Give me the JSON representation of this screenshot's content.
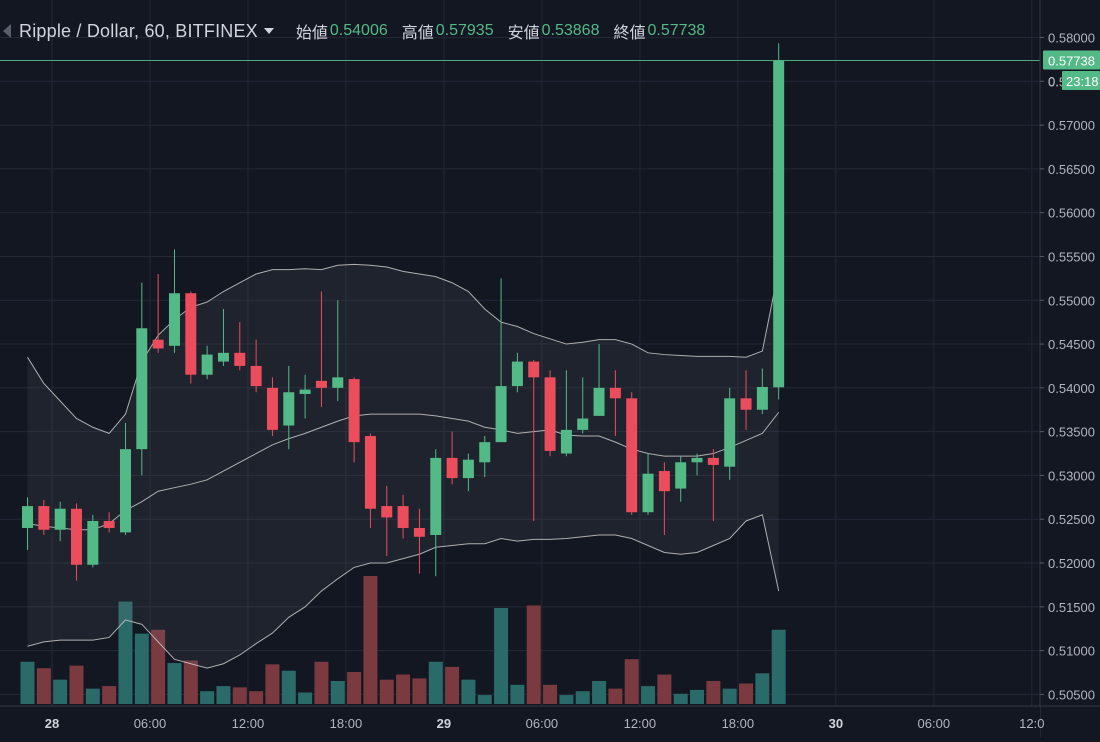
{
  "header": {
    "symbol": "Ripple / Dollar, 60, BITFINEX",
    "open_label": "始値",
    "open_value": "0.54006",
    "high_label": "高値",
    "high_value": "0.57935",
    "low_label": "安値",
    "low_value": "0.53868",
    "close_label": "終値",
    "close_value": "0.57738"
  },
  "price_axis": {
    "last_price_label": "0.57738",
    "countdown_label": "23:18",
    "countdown_prefix": "0."
  },
  "colors": {
    "up": "#53b987",
    "down": "#eb4d5c",
    "vol_up": "#2a6a68",
    "vol_down": "#7a3a40",
    "background": "#131722",
    "grid": "#232836",
    "band_line": "#c8c8c8"
  },
  "chart_data": {
    "type": "candlestick",
    "title": "Ripple / Dollar, 60, BITFINEX",
    "interval": "60",
    "exchange": "BITFINEX",
    "ylim": [
      0.503,
      0.5825
    ],
    "y_ticks": [
      "0.58000",
      "0.57500",
      "0.57000",
      "0.56500",
      "0.56000",
      "0.55500",
      "0.55000",
      "0.54500",
      "0.54000",
      "0.53500",
      "0.53000",
      "0.52500",
      "0.52000",
      "0.51500",
      "0.51000",
      "0.50500"
    ],
    "x_ticks": [
      {
        "label": "28",
        "hour": 0,
        "bold": true
      },
      {
        "label": "06:00",
        "hour": 6
      },
      {
        "label": "12:00",
        "hour": 12
      },
      {
        "label": "18:00",
        "hour": 18
      },
      {
        "label": "29",
        "hour": 24,
        "bold": true
      },
      {
        "label": "06:00",
        "hour": 30
      },
      {
        "label": "12:00",
        "hour": 36
      },
      {
        "label": "18:00",
        "hour": 42
      },
      {
        "label": "30",
        "hour": 48,
        "bold": true
      },
      {
        "label": "06:00",
        "hour": 54
      },
      {
        "label": "12:0",
        "hour": 60
      }
    ],
    "candles": [
      {
        "t": -2,
        "o": 0.524,
        "h": 0.5275,
        "l": 0.5215,
        "c": 0.5265
      },
      {
        "t": -1,
        "o": 0.5265,
        "h": 0.5272,
        "l": 0.5232,
        "c": 0.5238
      },
      {
        "t": 0,
        "o": 0.5238,
        "h": 0.527,
        "l": 0.5225,
        "c": 0.5262
      },
      {
        "t": 1,
        "o": 0.5262,
        "h": 0.5268,
        "l": 0.518,
        "c": 0.5198
      },
      {
        "t": 2,
        "o": 0.5198,
        "h": 0.5255,
        "l": 0.5195,
        "c": 0.5248
      },
      {
        "t": 3,
        "o": 0.5248,
        "h": 0.5258,
        "l": 0.5235,
        "c": 0.524
      },
      {
        "t": 4,
        "o": 0.5235,
        "h": 0.536,
        "l": 0.5232,
        "c": 0.533
      },
      {
        "t": 5,
        "o": 0.533,
        "h": 0.552,
        "l": 0.53,
        "c": 0.5468
      },
      {
        "t": 6,
        "o": 0.5455,
        "h": 0.553,
        "l": 0.544,
        "c": 0.5445
      },
      {
        "t": 7,
        "o": 0.5448,
        "h": 0.5558,
        "l": 0.544,
        "c": 0.5508
      },
      {
        "t": 8,
        "o": 0.5508,
        "h": 0.551,
        "l": 0.5405,
        "c": 0.5415
      },
      {
        "t": 9,
        "o": 0.5415,
        "h": 0.5448,
        "l": 0.541,
        "c": 0.5438
      },
      {
        "t": 10,
        "o": 0.543,
        "h": 0.549,
        "l": 0.5425,
        "c": 0.544
      },
      {
        "t": 11,
        "o": 0.544,
        "h": 0.5475,
        "l": 0.542,
        "c": 0.5425
      },
      {
        "t": 12,
        "o": 0.5425,
        "h": 0.5455,
        "l": 0.5395,
        "c": 0.5402
      },
      {
        "t": 13,
        "o": 0.54,
        "h": 0.5412,
        "l": 0.5345,
        "c": 0.5352
      },
      {
        "t": 14,
        "o": 0.5357,
        "h": 0.5425,
        "l": 0.533,
        "c": 0.5395
      },
      {
        "t": 15,
        "o": 0.5393,
        "h": 0.5415,
        "l": 0.5365,
        "c": 0.5398
      },
      {
        "t": 16,
        "o": 0.5408,
        "h": 0.551,
        "l": 0.5378,
        "c": 0.54
      },
      {
        "t": 17,
        "o": 0.54,
        "h": 0.55,
        "l": 0.5385,
        "c": 0.5412
      },
      {
        "t": 18,
        "o": 0.541,
        "h": 0.5412,
        "l": 0.5315,
        "c": 0.5338
      },
      {
        "t": 19,
        "o": 0.5345,
        "h": 0.5348,
        "l": 0.524,
        "c": 0.5262
      },
      {
        "t": 20,
        "o": 0.5265,
        "h": 0.5288,
        "l": 0.5208,
        "c": 0.5252
      },
      {
        "t": 21,
        "o": 0.5265,
        "h": 0.5278,
        "l": 0.5228,
        "c": 0.524
      },
      {
        "t": 22,
        "o": 0.524,
        "h": 0.5262,
        "l": 0.5188,
        "c": 0.523
      },
      {
        "t": 23,
        "o": 0.5232,
        "h": 0.533,
        "l": 0.5185,
        "c": 0.532
      },
      {
        "t": 24,
        "o": 0.532,
        "h": 0.535,
        "l": 0.529,
        "c": 0.5297
      },
      {
        "t": 25,
        "o": 0.5297,
        "h": 0.5325,
        "l": 0.5282,
        "c": 0.5318
      },
      {
        "t": 26,
        "o": 0.5315,
        "h": 0.5345,
        "l": 0.5298,
        "c": 0.5338
      },
      {
        "t": 27,
        "o": 0.5338,
        "h": 0.5525,
        "l": 0.5338,
        "c": 0.5402
      },
      {
        "t": 28,
        "o": 0.5402,
        "h": 0.544,
        "l": 0.5395,
        "c": 0.543
      },
      {
        "t": 29,
        "o": 0.543,
        "h": 0.5432,
        "l": 0.5248,
        "c": 0.5412
      },
      {
        "t": 30,
        "o": 0.5412,
        "h": 0.542,
        "l": 0.5322,
        "c": 0.5328
      },
      {
        "t": 31,
        "o": 0.5325,
        "h": 0.542,
        "l": 0.5322,
        "c": 0.5352
      },
      {
        "t": 32,
        "o": 0.5352,
        "h": 0.5412,
        "l": 0.5348,
        "c": 0.5365
      },
      {
        "t": 33,
        "o": 0.5368,
        "h": 0.545,
        "l": 0.5368,
        "c": 0.54
      },
      {
        "t": 34,
        "o": 0.54,
        "h": 0.542,
        "l": 0.5345,
        "c": 0.5388
      },
      {
        "t": 35,
        "o": 0.5388,
        "h": 0.5395,
        "l": 0.5255,
        "c": 0.5258
      },
      {
        "t": 36,
        "o": 0.5258,
        "h": 0.5325,
        "l": 0.5255,
        "c": 0.5302
      },
      {
        "t": 37,
        "o": 0.5305,
        "h": 0.5315,
        "l": 0.5232,
        "c": 0.5282
      },
      {
        "t": 38,
        "o": 0.5285,
        "h": 0.5322,
        "l": 0.527,
        "c": 0.5315
      },
      {
        "t": 39,
        "o": 0.5315,
        "h": 0.5325,
        "l": 0.53,
        "c": 0.532
      },
      {
        "t": 40,
        "o": 0.532,
        "h": 0.533,
        "l": 0.5248,
        "c": 0.5312
      },
      {
        "t": 41,
        "o": 0.531,
        "h": 0.54,
        "l": 0.5295,
        "c": 0.5388
      },
      {
        "t": 42,
        "o": 0.5388,
        "h": 0.542,
        "l": 0.5352,
        "c": 0.5375
      },
      {
        "t": 43,
        "o": 0.5375,
        "h": 0.5422,
        "l": 0.537,
        "c": 0.5401
      },
      {
        "t": 44,
        "o": 0.54006,
        "h": 0.57935,
        "l": 0.53868,
        "c": 0.57738
      }
    ],
    "volume": [
      {
        "t": -2,
        "v": 0.33
      },
      {
        "t": -1,
        "v": 0.28
      },
      {
        "t": 0,
        "v": 0.19
      },
      {
        "t": 1,
        "v": 0.3
      },
      {
        "t": 2,
        "v": 0.12
      },
      {
        "t": 3,
        "v": 0.14
      },
      {
        "t": 4,
        "v": 0.8
      },
      {
        "t": 5,
        "v": 0.55
      },
      {
        "t": 6,
        "v": 0.58
      },
      {
        "t": 7,
        "v": 0.32
      },
      {
        "t": 8,
        "v": 0.34
      },
      {
        "t": 9,
        "v": 0.1
      },
      {
        "t": 10,
        "v": 0.14
      },
      {
        "t": 11,
        "v": 0.13
      },
      {
        "t": 12,
        "v": 0.1
      },
      {
        "t": 13,
        "v": 0.31
      },
      {
        "t": 14,
        "v": 0.26
      },
      {
        "t": 15,
        "v": 0.09
      },
      {
        "t": 16,
        "v": 0.33
      },
      {
        "t": 17,
        "v": 0.18
      },
      {
        "t": 18,
        "v": 0.25
      },
      {
        "t": 19,
        "v": 1.0
      },
      {
        "t": 20,
        "v": 0.19
      },
      {
        "t": 21,
        "v": 0.23
      },
      {
        "t": 22,
        "v": 0.2
      },
      {
        "t": 23,
        "v": 0.33
      },
      {
        "t": 24,
        "v": 0.29
      },
      {
        "t": 25,
        "v": 0.19
      },
      {
        "t": 26,
        "v": 0.07
      },
      {
        "t": 27,
        "v": 0.75
      },
      {
        "t": 28,
        "v": 0.15
      },
      {
        "t": 29,
        "v": 0.77
      },
      {
        "t": 30,
        "v": 0.15
      },
      {
        "t": 31,
        "v": 0.07
      },
      {
        "t": 32,
        "v": 0.1
      },
      {
        "t": 33,
        "v": 0.18
      },
      {
        "t": 34,
        "v": 0.12
      },
      {
        "t": 35,
        "v": 0.35
      },
      {
        "t": 36,
        "v": 0.14
      },
      {
        "t": 37,
        "v": 0.23
      },
      {
        "t": 38,
        "v": 0.08
      },
      {
        "t": 39,
        "v": 0.11
      },
      {
        "t": 40,
        "v": 0.18
      },
      {
        "t": 41,
        "v": 0.12
      },
      {
        "t": 42,
        "v": 0.16
      },
      {
        "t": 43,
        "v": 0.24
      },
      {
        "t": 44,
        "v": 0.58
      }
    ],
    "bollinger": {
      "upper": [
        [
          -2,
          0.5435
        ],
        [
          -1,
          0.5405
        ],
        [
          0,
          0.5385
        ],
        [
          1,
          0.5365
        ],
        [
          2,
          0.5355
        ],
        [
          3,
          0.5348
        ],
        [
          4,
          0.537
        ],
        [
          5,
          0.543
        ],
        [
          6,
          0.546
        ],
        [
          7,
          0.5478
        ],
        [
          8,
          0.5492
        ],
        [
          9,
          0.5498
        ],
        [
          10,
          0.551
        ],
        [
          11,
          0.552
        ],
        [
          12,
          0.553
        ],
        [
          13,
          0.5535
        ],
        [
          14,
          0.5535
        ],
        [
          15,
          0.5536
        ],
        [
          16,
          0.5535
        ],
        [
          17,
          0.554
        ],
        [
          18,
          0.5541
        ],
        [
          19,
          0.554
        ],
        [
          20,
          0.5538
        ],
        [
          21,
          0.5533
        ],
        [
          22,
          0.553
        ],
        [
          23,
          0.5527
        ],
        [
          24,
          0.552
        ],
        [
          25,
          0.551
        ],
        [
          26,
          0.549
        ],
        [
          27,
          0.5475
        ],
        [
          28,
          0.547
        ],
        [
          29,
          0.5462
        ],
        [
          30,
          0.5456
        ],
        [
          31,
          0.545
        ],
        [
          32,
          0.5452
        ],
        [
          33,
          0.5455
        ],
        [
          34,
          0.5455
        ],
        [
          35,
          0.545
        ],
        [
          36,
          0.544
        ],
        [
          37,
          0.5438
        ],
        [
          38,
          0.5437
        ],
        [
          39,
          0.5436
        ],
        [
          40,
          0.5436
        ],
        [
          41,
          0.5436
        ],
        [
          42,
          0.5435
        ],
        [
          43,
          0.5442
        ],
        [
          44,
          0.5535
        ]
      ],
      "middle": [
        [
          -2,
          0.5245
        ],
        [
          -1,
          0.5242
        ],
        [
          0,
          0.524
        ],
        [
          1,
          0.5238
        ],
        [
          2,
          0.5238
        ],
        [
          3,
          0.5245
        ],
        [
          4,
          0.526
        ],
        [
          5,
          0.527
        ],
        [
          6,
          0.5282
        ],
        [
          7,
          0.5286
        ],
        [
          8,
          0.529
        ],
        [
          9,
          0.5295
        ],
        [
          10,
          0.5305
        ],
        [
          11,
          0.5315
        ],
        [
          12,
          0.5325
        ],
        [
          13,
          0.5335
        ],
        [
          14,
          0.5342
        ],
        [
          15,
          0.5348
        ],
        [
          16,
          0.5355
        ],
        [
          17,
          0.5362
        ],
        [
          18,
          0.5368
        ],
        [
          19,
          0.537
        ],
        [
          20,
          0.537
        ],
        [
          21,
          0.537
        ],
        [
          22,
          0.537
        ],
        [
          23,
          0.5368
        ],
        [
          24,
          0.5365
        ],
        [
          25,
          0.5362
        ],
        [
          26,
          0.5355
        ],
        [
          27,
          0.5352
        ],
        [
          28,
          0.5348
        ],
        [
          29,
          0.535
        ],
        [
          30,
          0.5352
        ],
        [
          31,
          0.5346
        ],
        [
          32,
          0.5345
        ],
        [
          33,
          0.5345
        ],
        [
          34,
          0.5338
        ],
        [
          35,
          0.533
        ],
        [
          36,
          0.5325
        ],
        [
          37,
          0.5322
        ],
        [
          38,
          0.5322
        ],
        [
          39,
          0.5322
        ],
        [
          40,
          0.5325
        ],
        [
          41,
          0.5332
        ],
        [
          42,
          0.534
        ],
        [
          43,
          0.5348
        ],
        [
          44,
          0.5372
        ]
      ],
      "lower": [
        [
          -2,
          0.5105
        ],
        [
          -1,
          0.511
        ],
        [
          0,
          0.5112
        ],
        [
          1,
          0.5112
        ],
        [
          2,
          0.5112
        ],
        [
          3,
          0.5115
        ],
        [
          4,
          0.5135
        ],
        [
          5,
          0.513
        ],
        [
          6,
          0.511
        ],
        [
          7,
          0.509
        ],
        [
          8,
          0.5085
        ],
        [
          9,
          0.508
        ],
        [
          10,
          0.5085
        ],
        [
          11,
          0.5095
        ],
        [
          12,
          0.5108
        ],
        [
          13,
          0.512
        ],
        [
          14,
          0.5138
        ],
        [
          15,
          0.515
        ],
        [
          16,
          0.5168
        ],
        [
          17,
          0.5182
        ],
        [
          18,
          0.5195
        ],
        [
          19,
          0.52
        ],
        [
          20,
          0.52
        ],
        [
          21,
          0.5205
        ],
        [
          22,
          0.521
        ],
        [
          23,
          0.5218
        ],
        [
          24,
          0.522
        ],
        [
          25,
          0.5222
        ],
        [
          26,
          0.5222
        ],
        [
          27,
          0.5228
        ],
        [
          28,
          0.5225
        ],
        [
          29,
          0.5227
        ],
        [
          30,
          0.5227
        ],
        [
          31,
          0.5228
        ],
        [
          32,
          0.523
        ],
        [
          33,
          0.5232
        ],
        [
          34,
          0.5232
        ],
        [
          35,
          0.5228
        ],
        [
          36,
          0.522
        ],
        [
          37,
          0.5212
        ],
        [
          38,
          0.521
        ],
        [
          39,
          0.5212
        ],
        [
          40,
          0.522
        ],
        [
          41,
          0.5228
        ],
        [
          42,
          0.5248
        ],
        [
          43,
          0.5255
        ],
        [
          44,
          0.5168
        ]
      ]
    },
    "last_price": 0.57738,
    "grid": true
  }
}
